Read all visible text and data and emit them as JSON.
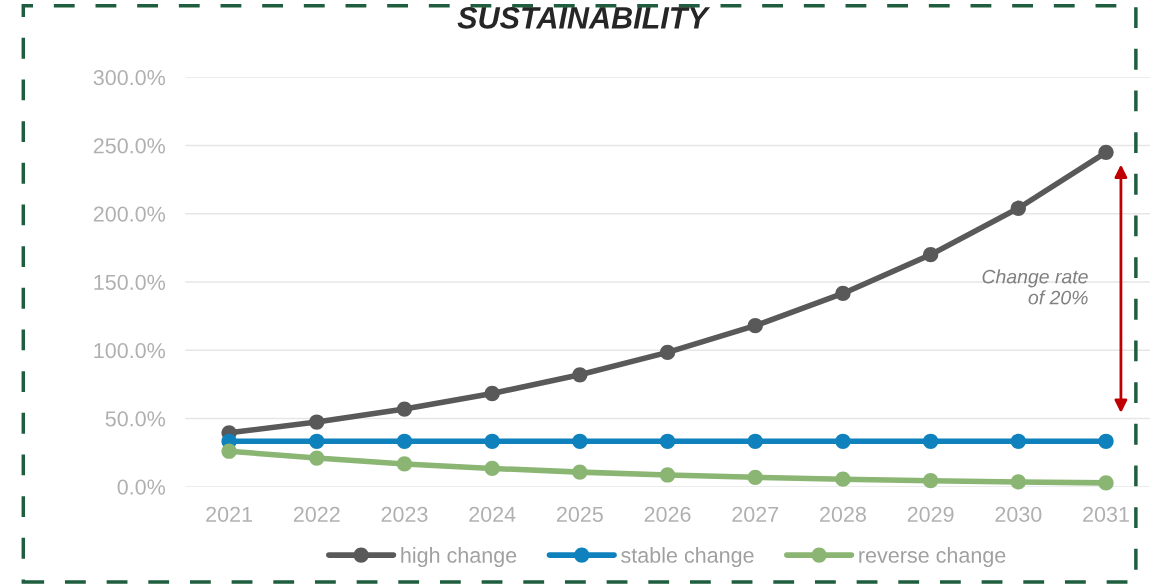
{
  "chart_data": {
    "type": "line",
    "title": "SUSTAINABILITY",
    "categories": [
      "2021",
      "2022",
      "2023",
      "2024",
      "2025",
      "2026",
      "2027",
      "2028",
      "2029",
      "2030",
      "2031"
    ],
    "series": [
      {
        "name": "high change",
        "color": "#595959",
        "values": [
          39.5,
          47.4,
          56.9,
          68.3,
          82.0,
          98.4,
          118.0,
          141.6,
          170.0,
          204.0,
          245.0
        ]
      },
      {
        "name": "stable change",
        "color": "#0f82bd",
        "values": [
          33.3,
          33.3,
          33.3,
          33.3,
          33.3,
          33.3,
          33.3,
          33.3,
          33.3,
          33.3,
          33.3
        ]
      },
      {
        "name": "reverse change",
        "color": "#8ab573",
        "values": [
          26.0,
          21.0,
          16.7,
          13.4,
          10.7,
          8.6,
          6.9,
          5.5,
          4.4,
          3.5,
          2.8
        ]
      }
    ],
    "ylim": [
      0,
      300
    ],
    "yticks": [
      {
        "value": 0,
        "label": "0.0%"
      },
      {
        "value": 50,
        "label": "50.0%"
      },
      {
        "value": 100,
        "label": "100.0%"
      },
      {
        "value": 150,
        "label": "150.0%"
      },
      {
        "value": 200,
        "label": "200.0%"
      },
      {
        "value": 250,
        "label": "250.0%"
      },
      {
        "value": 300,
        "label": "300.0%"
      }
    ],
    "grid": "y",
    "legend": "bottom",
    "marker": "circle",
    "line_style": "solid",
    "annotations": [
      "Change rate\nof 20%"
    ]
  }
}
